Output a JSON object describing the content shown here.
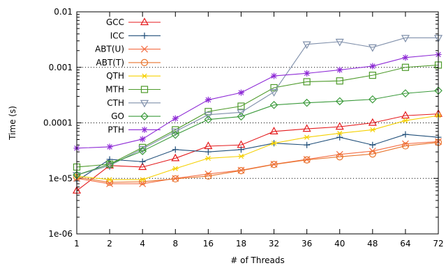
{
  "chart_data": {
    "type": "line",
    "xlabel": "# of Threads",
    "ylabel": "Time (s)",
    "y_scale": "log",
    "ylim": [
      1e-06,
      0.01
    ],
    "y_ticks": [
      "1e-06",
      "1e-05",
      "0.0001",
      "0.001",
      "0.01"
    ],
    "grid": "dotted horizontal at decades 1e-05, 0.0001, 0.001",
    "legend_position": "top-left",
    "categories": [
      "1",
      "2",
      "4",
      "8",
      "16",
      "18",
      "32",
      "36",
      "40",
      "48",
      "64",
      "72"
    ],
    "series": [
      {
        "name": "GCC",
        "color": "#e41a1c",
        "marker": "triangle-up",
        "values": [
          6e-06,
          1.7e-05,
          1.6e-05,
          2.3e-05,
          3.8e-05,
          4e-05,
          7e-05,
          7.8e-05,
          8.5e-05,
          0.0001,
          0.000135,
          0.000145
        ]
      },
      {
        "name": "ICC",
        "color": "#1f4e79",
        "marker": "plus",
        "values": [
          9e-06,
          2.2e-05,
          2e-05,
          3.3e-05,
          3e-05,
          3.3e-05,
          4.3e-05,
          4e-05,
          5.5e-05,
          4e-05,
          6.2e-05,
          5.5e-05
        ]
      },
      {
        "name": "ABT(U)",
        "color": "#f46d43",
        "marker": "x",
        "values": [
          1e-05,
          8e-06,
          8e-06,
          1e-05,
          1.2e-05,
          1.4e-05,
          1.8e-05,
          2.2e-05,
          2.7e-05,
          3.1e-05,
          4.2e-05,
          4.6e-05
        ]
      },
      {
        "name": "ABT(T)",
        "color": "#e8742c",
        "marker": "circle",
        "values": [
          1.05e-05,
          8.5e-06,
          8.7e-06,
          9.8e-06,
          1.1e-05,
          1.38e-05,
          1.78e-05,
          2.15e-05,
          2.45e-05,
          2.75e-05,
          3.85e-05,
          4.45e-05
        ]
      },
      {
        "name": "QTH",
        "color": "#f5d000",
        "marker": "asterisk",
        "values": [
          1.1e-05,
          9.5e-06,
          9.5e-06,
          1.5e-05,
          2.3e-05,
          2.5e-05,
          4.3e-05,
          5.5e-05,
          6.5e-05,
          7.5e-05,
          0.00011,
          0.000135
        ]
      },
      {
        "name": "MTH",
        "color": "#4d9a2a",
        "marker": "square",
        "values": [
          1.6e-05,
          1.8e-05,
          3.6e-05,
          7.5e-05,
          0.00016,
          0.0002,
          0.00043,
          0.00055,
          0.00057,
          0.00072,
          0.001,
          0.0011
        ]
      },
      {
        "name": "CTH",
        "color": "#7f8faa",
        "marker": "triangle-down",
        "values": [
          1.15e-05,
          1.7e-05,
          3.4e-05,
          7e-05,
          0.00014,
          0.000155,
          0.00036,
          0.0026,
          0.0029,
          0.0023,
          0.0034,
          0.0034
        ]
      },
      {
        "name": "GO",
        "color": "#3b9a3b",
        "marker": "diamond",
        "values": [
          1.15e-05,
          1.8e-05,
          3.1e-05,
          6.1e-05,
          0.000115,
          0.00013,
          0.00021,
          0.00023,
          0.000245,
          0.000265,
          0.00034,
          0.00038
        ]
      },
      {
        "name": "PTH",
        "color": "#8e2bd6",
        "marker": "star",
        "values": [
          3.5e-05,
          3.7e-05,
          5.1e-05,
          0.00012,
          0.00026,
          0.00035,
          0.0007,
          0.00078,
          0.0009,
          0.00105,
          0.0015,
          0.0017
        ]
      }
    ]
  }
}
